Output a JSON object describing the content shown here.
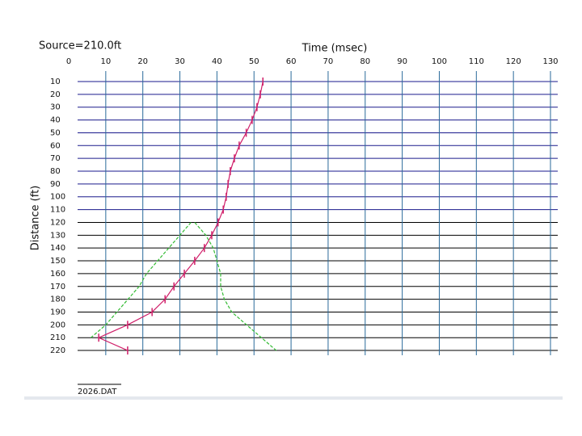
{
  "chart_data": {
    "type": "line",
    "title": "Time (msec)",
    "annotation": "Source=210.0ft",
    "ylabel": "Distance (ft)",
    "footer": "2026.DAT",
    "categories": [
      10,
      20,
      30,
      40,
      50,
      60,
      70,
      80,
      90,
      100,
      110,
      120,
      130,
      140,
      150,
      160,
      170,
      180,
      190,
      200,
      210,
      220
    ],
    "xlim": [
      0,
      130
    ],
    "xticks": [
      0,
      10,
      20,
      30,
      40,
      50,
      60,
      70,
      80,
      90,
      100,
      110,
      120,
      130
    ],
    "grid": true,
    "series": [
      {
        "color": "#d0206a",
        "values": [
          52.4,
          51.7,
          50.8,
          49.5,
          47.9,
          46,
          44.7,
          43.6,
          43,
          42.5,
          41.7,
          40.3,
          38.6,
          36.6,
          34,
          31.2,
          28.4,
          26,
          22.5,
          15.9,
          8.1,
          15.9
        ]
      },
      {
        "color": "#33bb33",
        "values": [
          null,
          null,
          null,
          null,
          null,
          null,
          null,
          null,
          null,
          null,
          null,
          33,
          30,
          27,
          24,
          21,
          19,
          16,
          13,
          10,
          6,
          null
        ]
      },
      {
        "color": "#33bb33",
        "values": [
          null,
          null,
          null,
          null,
          null,
          null,
          null,
          null,
          null,
          null,
          null,
          34,
          37,
          39,
          40,
          41,
          41,
          42,
          44,
          48,
          52,
          56
        ]
      }
    ]
  }
}
